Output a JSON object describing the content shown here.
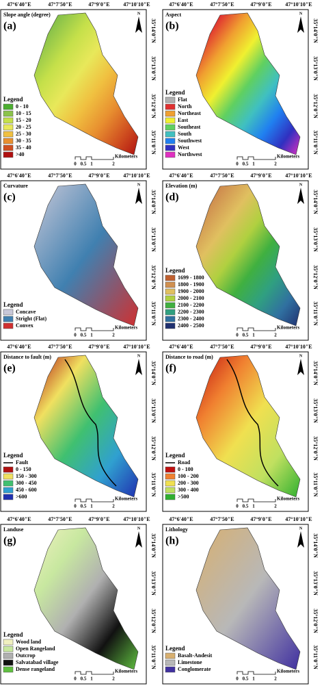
{
  "shared": {
    "longitudes": [
      "47°6'40\"E",
      "47°7'50\"E",
      "47°9'0\"E",
      "47°10'10\"E"
    ],
    "latitudes": [
      "35°14'0\"N",
      "35°13'0\"N",
      "35°12'0\"N",
      "35°11'0\"N"
    ],
    "north": "N",
    "scale_ticks": [
      "0",
      "0.5",
      "1",
      "2"
    ],
    "scale_unit": "Kilometers"
  },
  "panels": [
    {
      "letter": "(a)",
      "title": "Slope angle (degree)",
      "legend_title": "Legend",
      "legend": [
        {
          "label": "0 - 10",
          "color": "#4caf30"
        },
        {
          "label": "10 - 15",
          "color": "#8bc34a"
        },
        {
          "label": "15 - 20",
          "color": "#c5e04a"
        },
        {
          "label": "20 - 25",
          "color": "#e8e85a"
        },
        {
          "label": "25 - 30",
          "color": "#f0c040"
        },
        {
          "label": "30 - 35",
          "color": "#e89030"
        },
        {
          "label": "35 - 40",
          "color": "#d05020"
        },
        {
          "label": ">40",
          "color": "#b01010"
        }
      ]
    },
    {
      "letter": "(b)",
      "title": "Aspect",
      "legend_title": "Legend",
      "legend": [
        {
          "label": "Flat",
          "color": "#b0b0b0"
        },
        {
          "label": "North",
          "color": "#e03030"
        },
        {
          "label": "Northeast",
          "color": "#f0a030"
        },
        {
          "label": "East",
          "color": "#f0f030"
        },
        {
          "label": "Southeast",
          "color": "#60d060"
        },
        {
          "label": "South",
          "color": "#40c0c0"
        },
        {
          "label": "Southwest",
          "color": "#2080f0"
        },
        {
          "label": "West",
          "color": "#3030c0"
        },
        {
          "label": "Northwest",
          "color": "#e030c0"
        }
      ]
    },
    {
      "letter": "(c)",
      "title": "Curvature",
      "legend_title": "Legend",
      "legend": [
        {
          "label": "Concave",
          "color": "#c8c8d8"
        },
        {
          "label": "Stright (Flat)",
          "color": "#4080b0"
        },
        {
          "label": "Convex",
          "color": "#d03030"
        }
      ]
    },
    {
      "letter": "(d)",
      "title": "Elevation (m)",
      "legend_title": "Legend",
      "legend": [
        {
          "label": "1699 - 1800",
          "color": "#c06030"
        },
        {
          "label": "1800 - 1900",
          "color": "#d09050"
        },
        {
          "label": "1900 - 2000",
          "color": "#e0c060"
        },
        {
          "label": "2000 - 2100",
          "color": "#b0d040"
        },
        {
          "label": "2100 - 2200",
          "color": "#40b040"
        },
        {
          "label": "2200 - 2300",
          "color": "#30a080"
        },
        {
          "label": "2300 - 2400",
          "color": "#3070a0"
        },
        {
          "label": "2400 - 2500",
          "color": "#203070"
        }
      ]
    },
    {
      "letter": "(e)",
      "title": "Distance to fault (m)",
      "legend_title": "Legend",
      "legend": [
        {
          "label": "Fault",
          "color": "#000000",
          "symbol": "line"
        },
        {
          "label": "0 - 150",
          "color": "#b01010"
        },
        {
          "label": "150 - 300",
          "color": "#f0e060"
        },
        {
          "label": "300 - 450",
          "color": "#40c070"
        },
        {
          "label": "450 - 600",
          "color": "#30a0d0"
        },
        {
          "label": ">600",
          "color": "#2030b0"
        }
      ]
    },
    {
      "letter": "(f)",
      "title": "Distance to road (m)",
      "legend_title": "Legend",
      "legend": [
        {
          "label": "Road",
          "color": "#000000",
          "symbol": "line"
        },
        {
          "label": "0 - 100",
          "color": "#c01010"
        },
        {
          "label": "100 - 200",
          "color": "#f08030"
        },
        {
          "label": "200 - 300",
          "color": "#f0e050"
        },
        {
          "label": "300 - 400",
          "color": "#c0e060"
        },
        {
          "label": ">500",
          "color": "#30b030"
        }
      ]
    },
    {
      "letter": "(g)",
      "title": "Landuse",
      "legend_title": "Legend",
      "legend": [
        {
          "label": "Wood land",
          "color": "#f0f0c0"
        },
        {
          "label": "Open Rangeland",
          "color": "#c8e8a0"
        },
        {
          "label": "Outcrop",
          "color": "#b0b0b0"
        },
        {
          "label": "Salvatabad village",
          "color": "#111111"
        },
        {
          "label": "Dense rangeland",
          "color": "#60c040"
        }
      ]
    },
    {
      "letter": "(h)",
      "title": "Lithology",
      "legend_title": "Legend",
      "legend": [
        {
          "label": "Basalt-Andesit",
          "color": "#d8b070"
        },
        {
          "label": "Limestone",
          "color": "#b8b8b8"
        },
        {
          "label": "Conglomerate",
          "color": "#4030a0"
        }
      ]
    }
  ]
}
